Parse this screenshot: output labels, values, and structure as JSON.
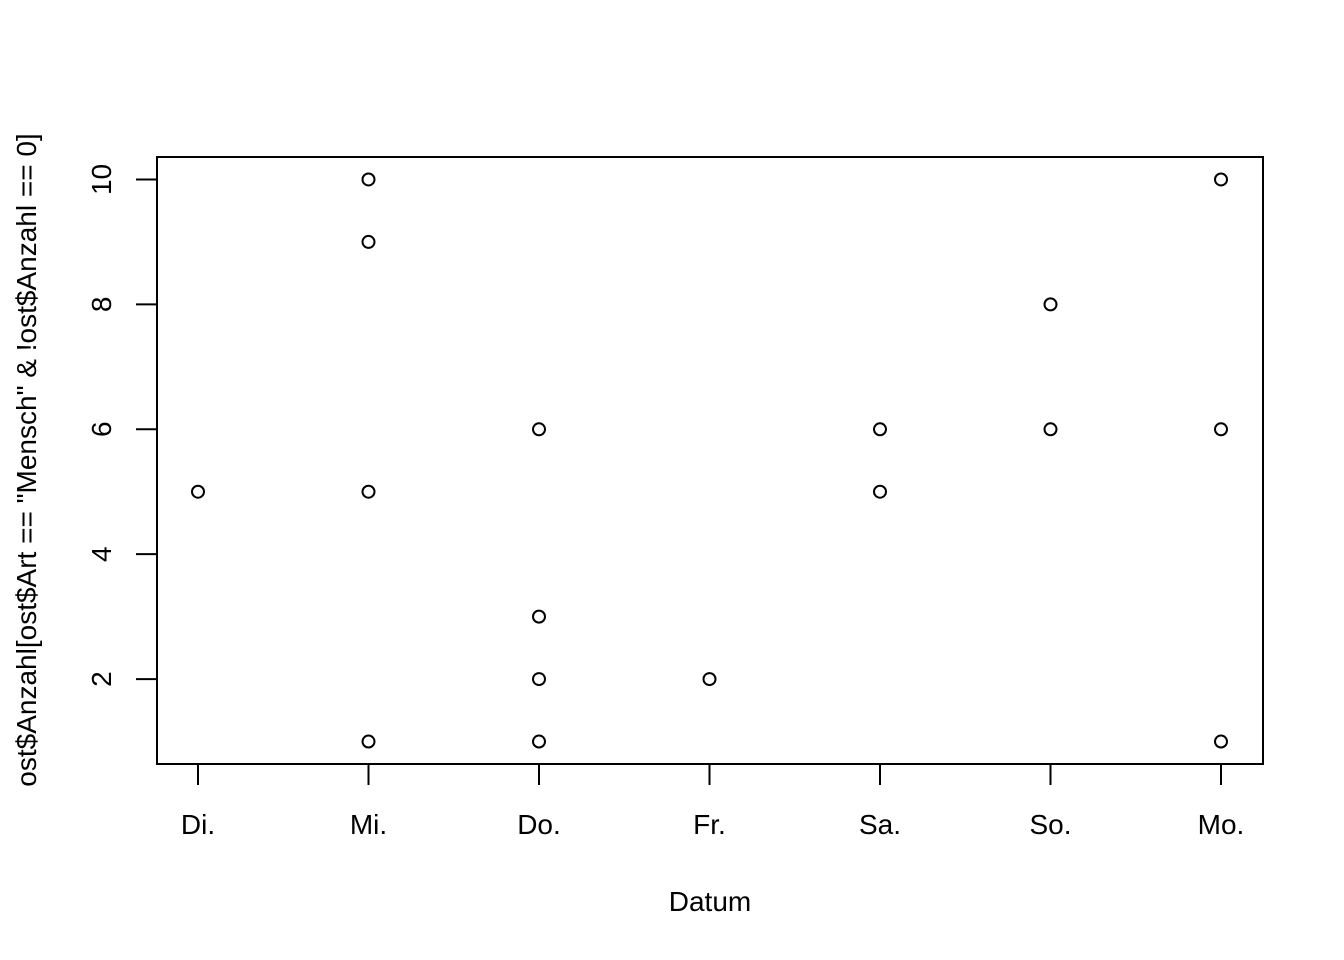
{
  "chart_data": {
    "type": "scatter",
    "title": "",
    "xlabel": "Datum",
    "ylabel": "ost$Anzahl[ost$Art == \"Mensch\" & !ost$Anzahl == 0]",
    "categories": [
      "Di.",
      "Mi.",
      "Do.",
      "Fr.",
      "Sa.",
      "So.",
      "Mo."
    ],
    "y_ticks": [
      "2",
      "4",
      "6",
      "8",
      "10"
    ],
    "ylim": [
      0.64,
      10.36
    ],
    "grid": false,
    "legend": "none",
    "marker": "open-circle",
    "colors": {
      "points": "#000000",
      "axes": "#000000",
      "background": "#ffffff"
    },
    "points": [
      {
        "x": "Di.",
        "y": 5
      },
      {
        "x": "Mi.",
        "y": 10
      },
      {
        "x": "Mi.",
        "y": 9
      },
      {
        "x": "Mi.",
        "y": 5
      },
      {
        "x": "Mi.",
        "y": 1
      },
      {
        "x": "Do.",
        "y": 6
      },
      {
        "x": "Do.",
        "y": 3
      },
      {
        "x": "Do.",
        "y": 2
      },
      {
        "x": "Do.",
        "y": 1
      },
      {
        "x": "Fr.",
        "y": 2
      },
      {
        "x": "Sa.",
        "y": 6
      },
      {
        "x": "Sa.",
        "y": 5
      },
      {
        "x": "So.",
        "y": 8
      },
      {
        "x": "So.",
        "y": 6
      },
      {
        "x": "Mo.",
        "y": 10
      },
      {
        "x": "Mo.",
        "y": 6
      },
      {
        "x": "Mo.",
        "y": 1
      }
    ]
  }
}
